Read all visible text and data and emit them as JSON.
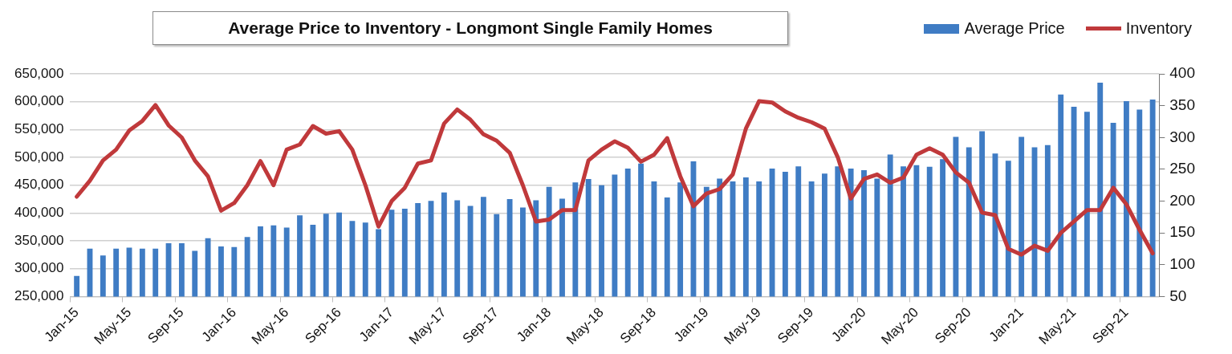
{
  "chart_data": {
    "type": "bar",
    "title": "Average Price to Inventory - Longmont Single Family Homes",
    "categories": [
      "Jan-15",
      null,
      null,
      null,
      "May-15",
      null,
      null,
      null,
      "Sep-15",
      null,
      null,
      null,
      "Jan-16",
      null,
      null,
      null,
      "May-16",
      null,
      null,
      null,
      "Sep-16",
      null,
      null,
      null,
      "Jan-17",
      null,
      null,
      null,
      "May-17",
      null,
      null,
      null,
      "Sep-17",
      null,
      null,
      null,
      "Jan-18",
      null,
      null,
      null,
      "May-18",
      null,
      null,
      null,
      "Sep-18",
      null,
      null,
      null,
      "Jan-19",
      null,
      null,
      null,
      "May-19",
      null,
      null,
      null,
      "Sep-19",
      null,
      null,
      null,
      "Jan-20",
      null,
      null,
      null,
      "May-20",
      null,
      null,
      null,
      "Sep-20",
      null,
      null,
      null,
      "Jan-21",
      null,
      null,
      null,
      "May-21",
      null,
      null,
      null,
      "Sep-21",
      null,
      null
    ],
    "series": [
      {
        "name": "Average Price",
        "color": "#3f7cc4",
        "values": [
          287000,
          336000,
          324000,
          336000,
          338000,
          336000,
          336000,
          346000,
          346000,
          332000,
          355000,
          340000,
          339000,
          357000,
          376000,
          378000,
          374000,
          396000,
          379000,
          399000,
          401000,
          386000,
          383000,
          371000,
          406000,
          408000,
          418000,
          422000,
          437000,
          423000,
          413000,
          429000,
          398000,
          425000,
          410000,
          423000,
          447000,
          426000,
          455000,
          461000,
          450000,
          469000,
          480000,
          489000,
          457000,
          428000,
          455000,
          493000,
          447000,
          462000,
          457000,
          464000,
          457000,
          480000,
          474000,
          484000,
          457000,
          471000,
          484000,
          480000,
          477000,
          462000,
          505000,
          484000,
          486000,
          483000,
          497000,
          537000,
          518000,
          547000,
          507000,
          494000,
          537000,
          518000,
          522000,
          613000,
          591000,
          582000,
          634000,
          562000,
          601000,
          586000,
          604000
        ]
      },
      {
        "name": "Inventory",
        "type": "line",
        "axis": "y2",
        "color": "#c0393b",
        "values": [
          207,
          232,
          264,
          281,
          311,
          326,
          351,
          319,
          300,
          264,
          239,
          185,
          197,
          225,
          263,
          225,
          281,
          289,
          318,
          306,
          310,
          281,
          225,
          160,
          200,
          221,
          259,
          264,
          322,
          344,
          328,
          305,
          295,
          276,
          225,
          168,
          171,
          186,
          186,
          264,
          281,
          294,
          284,
          262,
          273,
          299,
          239,
          192,
          212,
          219,
          242,
          314,
          357,
          355,
          341,
          331,
          324,
          314,
          269,
          204,
          235,
          242,
          229,
          237,
          273,
          283,
          273,
          245,
          229,
          182,
          178,
          125,
          116,
          130,
          122,
          150,
          168,
          186,
          186,
          221,
          195,
          155,
          118
        ]
      }
    ],
    "ylim": [
      250000,
      650000
    ],
    "yticks": [
      {
        "value": 250000,
        "label": "250,000"
      },
      {
        "value": 300000,
        "label": "300,000"
      },
      {
        "value": 350000,
        "label": "350,000"
      },
      {
        "value": 400000,
        "label": "400,000"
      },
      {
        "value": 450000,
        "label": "450,000"
      },
      {
        "value": 500000,
        "label": "500,000"
      },
      {
        "value": 550000,
        "label": "550,000"
      },
      {
        "value": 600000,
        "label": "600,000"
      },
      {
        "value": 650000,
        "label": "650,000"
      }
    ],
    "y2lim": [
      50,
      400
    ],
    "y2ticks": [
      50,
      100,
      150,
      200,
      250,
      300,
      350,
      400
    ],
    "grid": "y",
    "legend": "top right"
  }
}
